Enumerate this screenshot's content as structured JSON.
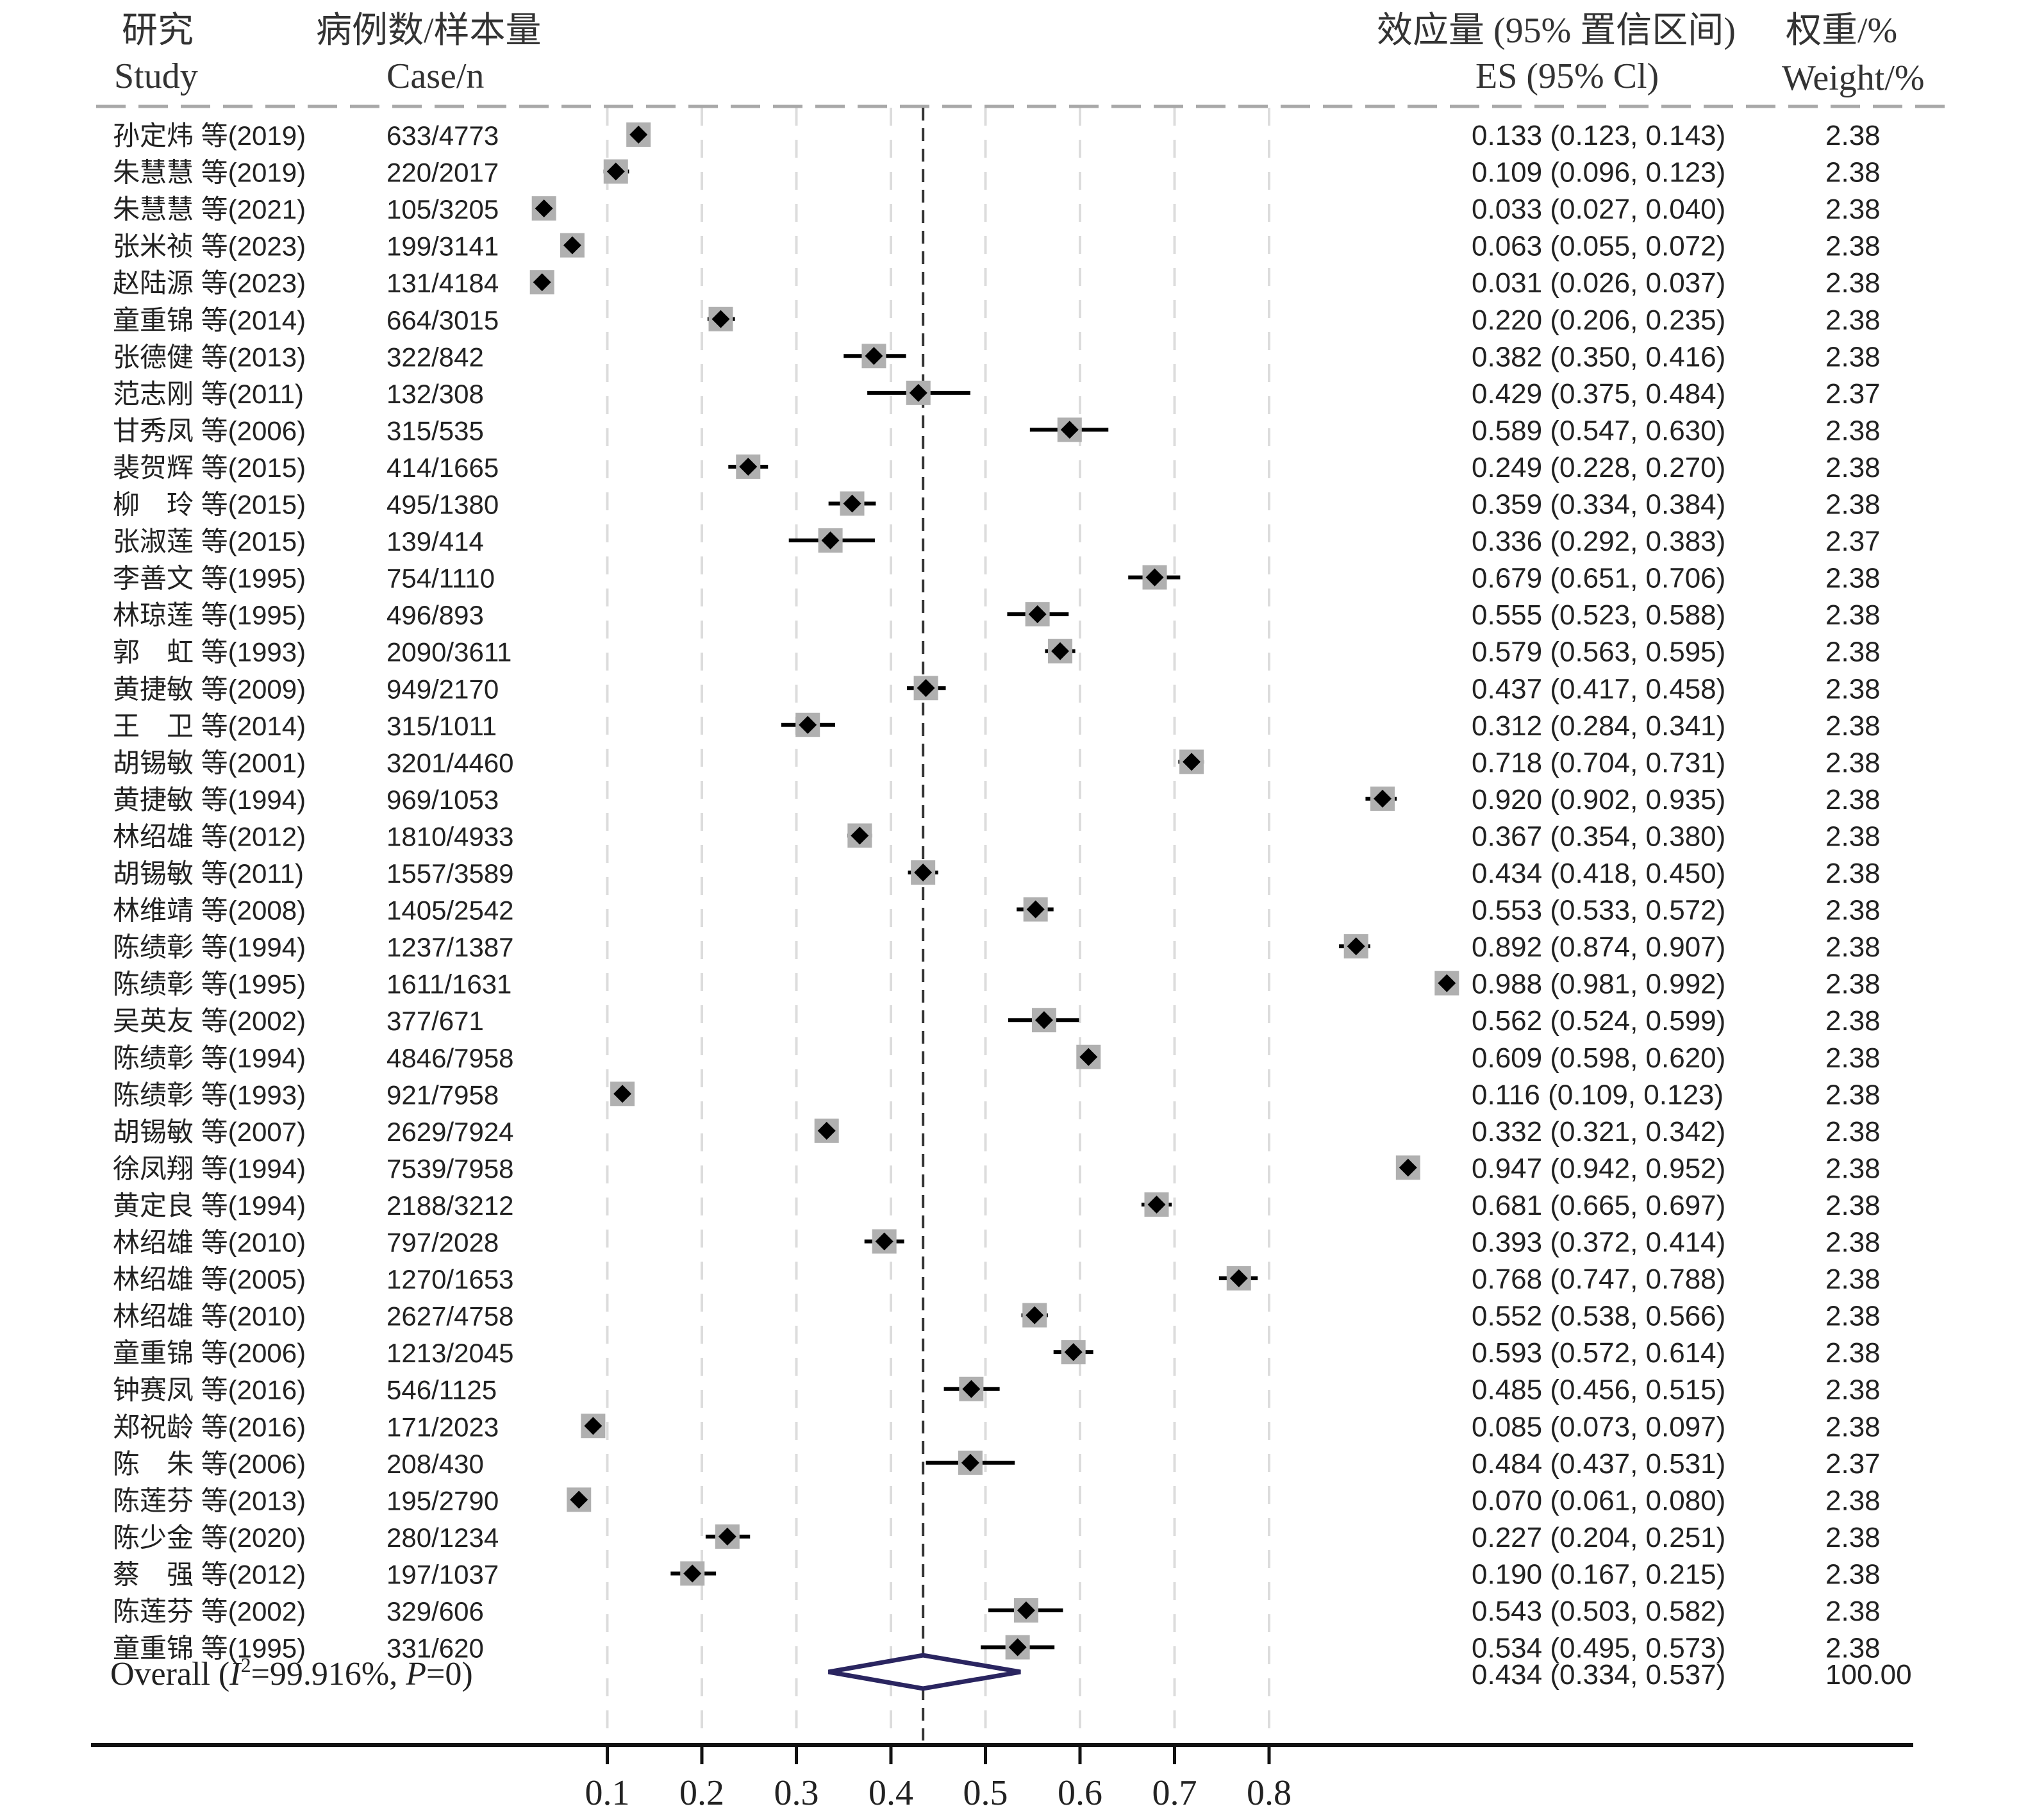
{
  "header": {
    "study_cn": "研究",
    "study_en": "Study",
    "case_cn": "病例数/样本量",
    "case_en": "Case/n",
    "es_cn": "效应量 (95% 置信区间)",
    "es_en": "ES (95% Cl)",
    "weight_cn": "权重/%",
    "weight_en": "Weight/%"
  },
  "chart_data": {
    "type": "forest",
    "pooled_reference_line": 0.434,
    "x_ticks": [
      "0.1",
      "0.2",
      "0.3",
      "0.4",
      "0.5",
      "0.6",
      "0.7",
      "0.8"
    ],
    "x_tick_values": [
      0.1,
      0.2,
      0.3,
      0.4,
      0.5,
      0.6,
      0.7,
      0.8
    ],
    "studies": [
      {
        "study": "孙定炜 等(2019)",
        "case_n": "633/4773",
        "es": 0.133,
        "lo": 0.123,
        "hi": 0.143,
        "es_text": "0.133 (0.123, 0.143)",
        "weight": "2.38"
      },
      {
        "study": "朱慧慧 等(2019)",
        "case_n": "220/2017",
        "es": 0.109,
        "lo": 0.096,
        "hi": 0.123,
        "es_text": "0.109 (0.096, 0.123)",
        "weight": "2.38"
      },
      {
        "study": "朱慧慧 等(2021)",
        "case_n": "105/3205",
        "es": 0.033,
        "lo": 0.027,
        "hi": 0.04,
        "es_text": "0.033 (0.027, 0.040)",
        "weight": "2.38"
      },
      {
        "study": "张米祯 等(2023)",
        "case_n": "199/3141",
        "es": 0.063,
        "lo": 0.055,
        "hi": 0.072,
        "es_text": "0.063 (0.055, 0.072)",
        "weight": "2.38"
      },
      {
        "study": "赵陆源 等(2023)",
        "case_n": "131/4184",
        "es": 0.031,
        "lo": 0.026,
        "hi": 0.037,
        "es_text": "0.031 (0.026, 0.037)",
        "weight": "2.38"
      },
      {
        "study": "童重锦 等(2014)",
        "case_n": "664/3015",
        "es": 0.22,
        "lo": 0.206,
        "hi": 0.235,
        "es_text": "0.220 (0.206, 0.235)",
        "weight": "2.38"
      },
      {
        "study": "张德健 等(2013)",
        "case_n": "322/842",
        "es": 0.382,
        "lo": 0.35,
        "hi": 0.416,
        "es_text": "0.382 (0.350, 0.416)",
        "weight": "2.38"
      },
      {
        "study": "范志刚 等(2011)",
        "case_n": "132/308",
        "es": 0.429,
        "lo": 0.375,
        "hi": 0.484,
        "es_text": "0.429 (0.375, 0.484)",
        "weight": "2.37"
      },
      {
        "study": "甘秀凤 等(2006)",
        "case_n": "315/535",
        "es": 0.589,
        "lo": 0.547,
        "hi": 0.63,
        "es_text": "0.589 (0.547, 0.630)",
        "weight": "2.38"
      },
      {
        "study": "裴贺辉 等(2015)",
        "case_n": "414/1665",
        "es": 0.249,
        "lo": 0.228,
        "hi": 0.27,
        "es_text": "0.249 (0.228, 0.270)",
        "weight": "2.38"
      },
      {
        "study": "柳　玲 等(2015)",
        "case_n": "495/1380",
        "es": 0.359,
        "lo": 0.334,
        "hi": 0.384,
        "es_text": "0.359 (0.334, 0.384)",
        "weight": "2.38"
      },
      {
        "study": "张淑莲 等(2015)",
        "case_n": "139/414",
        "es": 0.336,
        "lo": 0.292,
        "hi": 0.383,
        "es_text": "0.336 (0.292, 0.383)",
        "weight": "2.37"
      },
      {
        "study": "李善文 等(1995)",
        "case_n": "754/1110",
        "es": 0.679,
        "lo": 0.651,
        "hi": 0.706,
        "es_text": "0.679 (0.651, 0.706)",
        "weight": "2.38"
      },
      {
        "study": "林琼莲 等(1995)",
        "case_n": "496/893",
        "es": 0.555,
        "lo": 0.523,
        "hi": 0.588,
        "es_text": "0.555 (0.523, 0.588)",
        "weight": "2.38"
      },
      {
        "study": "郭　虹 等(1993)",
        "case_n": "2090/3611",
        "es": 0.579,
        "lo": 0.563,
        "hi": 0.595,
        "es_text": "0.579 (0.563, 0.595)",
        "weight": "2.38"
      },
      {
        "study": "黄捷敏 等(2009)",
        "case_n": "949/2170",
        "es": 0.437,
        "lo": 0.417,
        "hi": 0.458,
        "es_text": "0.437 (0.417, 0.458)",
        "weight": "2.38"
      },
      {
        "study": "王　卫 等(2014)",
        "case_n": "315/1011",
        "es": 0.312,
        "lo": 0.284,
        "hi": 0.341,
        "es_text": "0.312 (0.284, 0.341)",
        "weight": "2.38"
      },
      {
        "study": "胡锡敏 等(2001)",
        "case_n": "3201/4460",
        "es": 0.718,
        "lo": 0.704,
        "hi": 0.731,
        "es_text": "0.718 (0.704, 0.731)",
        "weight": "2.38"
      },
      {
        "study": "黄捷敏 等(1994)",
        "case_n": "969/1053",
        "es": 0.92,
        "lo": 0.902,
        "hi": 0.935,
        "es_text": "0.920 (0.902, 0.935)",
        "weight": "2.38"
      },
      {
        "study": "林绍雄 等(2012)",
        "case_n": "1810/4933",
        "es": 0.367,
        "lo": 0.354,
        "hi": 0.38,
        "es_text": "0.367 (0.354, 0.380)",
        "weight": "2.38"
      },
      {
        "study": "胡锡敏 等(2011)",
        "case_n": "1557/3589",
        "es": 0.434,
        "lo": 0.418,
        "hi": 0.45,
        "es_text": "0.434 (0.418, 0.450)",
        "weight": "2.38"
      },
      {
        "study": "林维靖 等(2008)",
        "case_n": "1405/2542",
        "es": 0.553,
        "lo": 0.533,
        "hi": 0.572,
        "es_text": "0.553 (0.533, 0.572)",
        "weight": "2.38"
      },
      {
        "study": "陈绩彰 等(1994)",
        "case_n": "1237/1387",
        "es": 0.892,
        "lo": 0.874,
        "hi": 0.907,
        "es_text": "0.892 (0.874, 0.907)",
        "weight": "2.38"
      },
      {
        "study": "陈绩彰 等(1995)",
        "case_n": "1611/1631",
        "es": 0.988,
        "lo": 0.981,
        "hi": 0.992,
        "es_text": "0.988 (0.981, 0.992)",
        "weight": "2.38"
      },
      {
        "study": "吴英友 等(2002)",
        "case_n": "377/671",
        "es": 0.562,
        "lo": 0.524,
        "hi": 0.599,
        "es_text": "0.562 (0.524, 0.599)",
        "weight": "2.38"
      },
      {
        "study": "陈绩彰 等(1994)",
        "case_n": "4846/7958",
        "es": 0.609,
        "lo": 0.598,
        "hi": 0.62,
        "es_text": "0.609 (0.598, 0.620)",
        "weight": "2.38"
      },
      {
        "study": "陈绩彰 等(1993)",
        "case_n": "921/7958",
        "es": 0.116,
        "lo": 0.109,
        "hi": 0.123,
        "es_text": "0.116 (0.109, 0.123)",
        "weight": "2.38"
      },
      {
        "study": "胡锡敏 等(2007)",
        "case_n": "2629/7924",
        "es": 0.332,
        "lo": 0.321,
        "hi": 0.342,
        "es_text": "0.332 (0.321, 0.342)",
        "weight": "2.38"
      },
      {
        "study": "徐凤翔 等(1994)",
        "case_n": "7539/7958",
        "es": 0.947,
        "lo": 0.942,
        "hi": 0.952,
        "es_text": "0.947 (0.942, 0.952)",
        "weight": "2.38"
      },
      {
        "study": "黄定良 等(1994)",
        "case_n": "2188/3212",
        "es": 0.681,
        "lo": 0.665,
        "hi": 0.697,
        "es_text": "0.681 (0.665, 0.697)",
        "weight": "2.38"
      },
      {
        "study": "林绍雄 等(2010)",
        "case_n": "797/2028",
        "es": 0.393,
        "lo": 0.372,
        "hi": 0.414,
        "es_text": "0.393 (0.372, 0.414)",
        "weight": "2.38"
      },
      {
        "study": "林绍雄 等(2005)",
        "case_n": "1270/1653",
        "es": 0.768,
        "lo": 0.747,
        "hi": 0.788,
        "es_text": "0.768 (0.747, 0.788)",
        "weight": "2.38"
      },
      {
        "study": "林绍雄 等(2010)",
        "case_n": "2627/4758",
        "es": 0.552,
        "lo": 0.538,
        "hi": 0.566,
        "es_text": "0.552 (0.538, 0.566)",
        "weight": "2.38"
      },
      {
        "study": "童重锦 等(2006)",
        "case_n": "1213/2045",
        "es": 0.593,
        "lo": 0.572,
        "hi": 0.614,
        "es_text": "0.593 (0.572, 0.614)",
        "weight": "2.38"
      },
      {
        "study": "钟赛凤 等(2016)",
        "case_n": "546/1125",
        "es": 0.485,
        "lo": 0.456,
        "hi": 0.515,
        "es_text": "0.485 (0.456, 0.515)",
        "weight": "2.38"
      },
      {
        "study": "郑祝龄 等(2016)",
        "case_n": "171/2023",
        "es": 0.085,
        "lo": 0.073,
        "hi": 0.097,
        "es_text": "0.085 (0.073, 0.097)",
        "weight": "2.38"
      },
      {
        "study": "陈　朱 等(2006)",
        "case_n": "208/430",
        "es": 0.484,
        "lo": 0.437,
        "hi": 0.531,
        "es_text": "0.484 (0.437, 0.531)",
        "weight": "2.37"
      },
      {
        "study": "陈莲芬 等(2013)",
        "case_n": "195/2790",
        "es": 0.07,
        "lo": 0.061,
        "hi": 0.08,
        "es_text": "0.070 (0.061, 0.080)",
        "weight": "2.38"
      },
      {
        "study": "陈少金 等(2020)",
        "case_n": "280/1234",
        "es": 0.227,
        "lo": 0.204,
        "hi": 0.251,
        "es_text": "0.227 (0.204, 0.251)",
        "weight": "2.38"
      },
      {
        "study": "蔡　强 等(2012)",
        "case_n": "197/1037",
        "es": 0.19,
        "lo": 0.167,
        "hi": 0.215,
        "es_text": "0.190 (0.167, 0.215)",
        "weight": "2.38"
      },
      {
        "study": "陈莲芬 等(2002)",
        "case_n": "329/606",
        "es": 0.543,
        "lo": 0.503,
        "hi": 0.582,
        "es_text": "0.543 (0.503, 0.582)",
        "weight": "2.38"
      },
      {
        "study": "童重锦 等(1995)",
        "case_n": "331/620",
        "es": 0.534,
        "lo": 0.495,
        "hi": 0.573,
        "es_text": "0.534 (0.495, 0.573)",
        "weight": "2.38"
      }
    ],
    "overall": {
      "label_prefix": "Overall (",
      "i2_symbol": "I",
      "i2_sup": "2",
      "i2_value": "=99.916%, ",
      "p_symbol": "P",
      "p_value": "=0)",
      "es": 0.434,
      "lo": 0.334,
      "hi": 0.537,
      "es_text": "0.434 (0.334, 0.537)",
      "weight": "100.00"
    },
    "colors": {
      "marker": "#000000",
      "weight_box": "#b0b0b0",
      "diamond": "#2a2560",
      "grid": "#dcdcdc",
      "divider": "#a8a8a8"
    }
  }
}
